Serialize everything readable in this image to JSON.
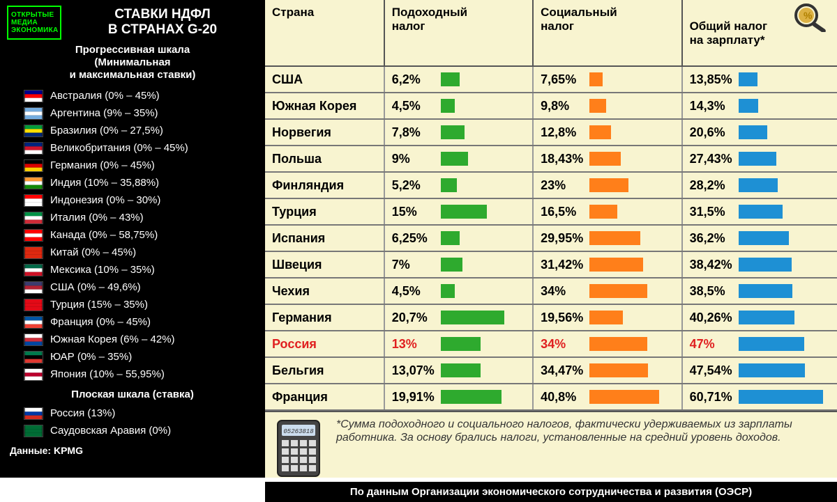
{
  "sidebar": {
    "logo_lines": [
      "ОТКРЫТЫЕ",
      "МЕДИА",
      "ЭКОНОМИКА"
    ],
    "title": "СТАВКИ НДФЛ\nВ СТРАНАХ G-20",
    "subtitle_progressive": "Прогрессивная шкала\n(Минимальная\nи максимальная ставки)",
    "countries_progressive": [
      {
        "name": "Австралия",
        "rates": "(0% – 45%)",
        "flag": [
          "#00008b",
          "#ff0000",
          "#ffffff"
        ]
      },
      {
        "name": "Аргентина",
        "rates": "(9% – 35%)",
        "flag": [
          "#74acdf",
          "#ffffff",
          "#74acdf"
        ]
      },
      {
        "name": "Бразилия",
        "rates": "(0% – 27,5%)",
        "flag": [
          "#009b3a",
          "#fedf00",
          "#002776"
        ]
      },
      {
        "name": "Великобритания",
        "rates": "(0% – 45%)",
        "flag": [
          "#00247d",
          "#cf142b",
          "#ffffff"
        ]
      },
      {
        "name": "Германия",
        "rates": "(0% – 45%)",
        "flag": [
          "#000000",
          "#dd0000",
          "#ffce00"
        ]
      },
      {
        "name": "Индия",
        "rates": "(10% – 35,88%)",
        "flag": [
          "#ff9933",
          "#ffffff",
          "#138808"
        ]
      },
      {
        "name": "Индонезия",
        "rates": "(0% – 30%)",
        "flag": [
          "#ff0000",
          "#ffffff",
          "#ffffff"
        ]
      },
      {
        "name": "Италия",
        "rates": "(0% – 43%)",
        "flag": [
          "#009246",
          "#ffffff",
          "#ce2b37"
        ]
      },
      {
        "name": "Канада",
        "rates": "(0% – 58,75%)",
        "flag": [
          "#ff0000",
          "#ffffff",
          "#ff0000"
        ]
      },
      {
        "name": "Китай",
        "rates": "(0% – 45%)",
        "flag": [
          "#de2910",
          "#de2910",
          "#de2910"
        ]
      },
      {
        "name": "Мексика",
        "rates": "(10% – 35%)",
        "flag": [
          "#006847",
          "#ffffff",
          "#ce1126"
        ]
      },
      {
        "name": "США",
        "rates": "(0% – 49,6%)",
        "flag": [
          "#3c3b6e",
          "#b22234",
          "#ffffff"
        ]
      },
      {
        "name": "Турция",
        "rates": "(15% – 35%)",
        "flag": [
          "#e30a17",
          "#e30a17",
          "#e30a17"
        ]
      },
      {
        "name": "Франция",
        "rates": "(0% – 45%)",
        "flag": [
          "#0055a4",
          "#ffffff",
          "#ef4135"
        ]
      },
      {
        "name": "Южная Корея",
        "rates": "(6% – 42%)",
        "flag": [
          "#ffffff",
          "#cd2e3a",
          "#0047a0"
        ]
      },
      {
        "name": "ЮАР",
        "rates": "(0% – 35%)",
        "flag": [
          "#007a4d",
          "#000000",
          "#de3831"
        ]
      },
      {
        "name": "Япония",
        "rates": "(10% – 55,95%)",
        "flag": [
          "#ffffff",
          "#bc002d",
          "#ffffff"
        ]
      }
    ],
    "subtitle_flat": "Плоская шкала (ставка)",
    "countries_flat": [
      {
        "name": "Россия",
        "rates": "(13%)",
        "flag": [
          "#ffffff",
          "#0039a6",
          "#d52b1e"
        ]
      },
      {
        "name": "Саудовская Аравия",
        "rates": "(0%)",
        "flag": [
          "#006c35",
          "#006c35",
          "#006c35"
        ]
      }
    ],
    "source": "Данные: KPMG"
  },
  "table": {
    "headers": [
      "Страна",
      "Подоходный\nналог",
      "Социальный\nналог",
      "Общий налог\nна зарплату*"
    ],
    "bar_colors": {
      "income": "#2eaa2e",
      "social": "#ff7f1a",
      "total": "#1e90d4"
    },
    "max_scale": {
      "income": 25,
      "social": 45,
      "total": 65
    },
    "rows": [
      {
        "country": "США",
        "income": 6.2,
        "income_txt": "6,2%",
        "social": 7.65,
        "social_txt": "7,65%",
        "total": 13.85,
        "total_txt": "13,85%"
      },
      {
        "country": "Южная Корея",
        "income": 4.5,
        "income_txt": "4,5%",
        "social": 9.8,
        "social_txt": "9,8%",
        "total": 14.3,
        "total_txt": "14,3%"
      },
      {
        "country": "Норвегия",
        "income": 7.8,
        "income_txt": "7,8%",
        "social": 12.8,
        "social_txt": "12,8%",
        "total": 20.6,
        "total_txt": "20,6%"
      },
      {
        "country": "Польша",
        "income": 9,
        "income_txt": "9%",
        "social": 18.43,
        "social_txt": "18,43%",
        "total": 27.43,
        "total_txt": "27,43%"
      },
      {
        "country": "Финляндия",
        "income": 5.2,
        "income_txt": "5,2%",
        "social": 23,
        "social_txt": "23%",
        "total": 28.2,
        "total_txt": "28,2%"
      },
      {
        "country": "Турция",
        "income": 15,
        "income_txt": "15%",
        "social": 16.5,
        "social_txt": "16,5%",
        "total": 31.5,
        "total_txt": "31,5%"
      },
      {
        "country": "Испания",
        "income": 6.25,
        "income_txt": "6,25%",
        "social": 29.95,
        "social_txt": "29,95%",
        "total": 36.2,
        "total_txt": "36,2%"
      },
      {
        "country": "Швеция",
        "income": 7,
        "income_txt": "7%",
        "social": 31.42,
        "social_txt": "31,42%",
        "total": 38.42,
        "total_txt": "38,42%"
      },
      {
        "country": "Чехия",
        "income": 4.5,
        "income_txt": "4,5%",
        "social": 34,
        "social_txt": "34%",
        "total": 38.5,
        "total_txt": "38,5%"
      },
      {
        "country": "Германия",
        "income": 20.7,
        "income_txt": "20,7%",
        "social": 19.56,
        "social_txt": "19,56%",
        "total": 40.26,
        "total_txt": "40,26%"
      },
      {
        "country": "Россия",
        "income": 13,
        "income_txt": "13%",
        "social": 34,
        "social_txt": "34%",
        "total": 47,
        "total_txt": "47%",
        "highlight": true
      },
      {
        "country": "Бельгия",
        "income": 13.07,
        "income_txt": "13,07%",
        "social": 34.47,
        "social_txt": "34,47%",
        "total": 47.54,
        "total_txt": "47,54%"
      },
      {
        "country": "Франция",
        "income": 19.91,
        "income_txt": "19,91%",
        "social": 40.8,
        "social_txt": "40,8%",
        "total": 60.71,
        "total_txt": "60,71%"
      }
    ],
    "footnote": "*Сумма подоходного и социального налогов, фактически удерживаемых из зарплаты работника. За основу брались налоги, установленные на средний уровень доходов.",
    "credit": "По данным Организации экономического сотрудничества и развития (ОЭСР)"
  }
}
